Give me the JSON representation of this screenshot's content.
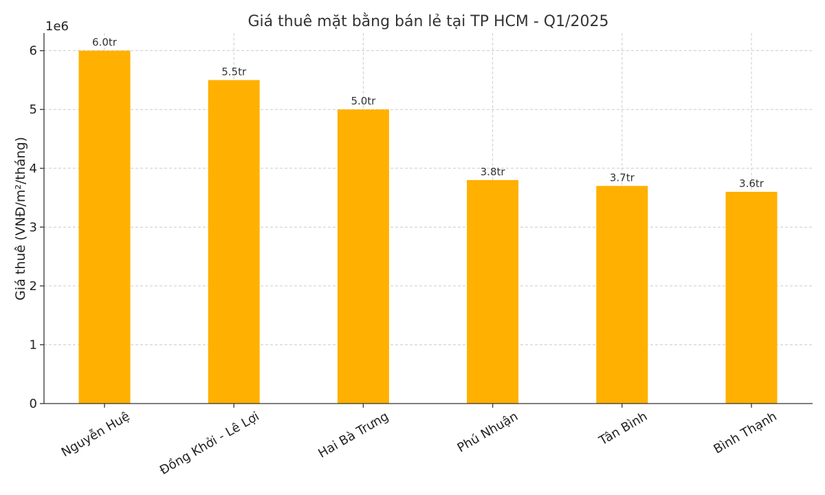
{
  "chart_data": {
    "type": "bar",
    "title": "Giá thuê mặt bằng bán lẻ tại TP HCM - Q1/2025",
    "ylabel": "Giá thuê (VNĐ/m²/tháng)",
    "xlabel": "",
    "y_offset_label": "1e6",
    "categories": [
      "Nguyễn Huệ",
      "Đồng Khởi - Lê Lợi",
      "Hai Bà Trưng",
      "Phú Nhuận",
      "Tân Bình",
      "Bình Thạnh"
    ],
    "values": [
      6000000,
      5500000,
      5000000,
      3800000,
      3700000,
      3600000
    ],
    "data_labels": [
      "6.0tr",
      "5.5tr",
      "5.0tr",
      "3.8tr",
      "3.7tr",
      "3.6tr"
    ],
    "ylim": [
      0,
      6300000
    ],
    "yticks": [
      0,
      1000000,
      2000000,
      3000000,
      4000000,
      5000000,
      6000000
    ],
    "ytick_labels": [
      "0",
      "1",
      "2",
      "3",
      "4",
      "5",
      "6"
    ],
    "grid": true,
    "bar_color": "#ffb000"
  }
}
